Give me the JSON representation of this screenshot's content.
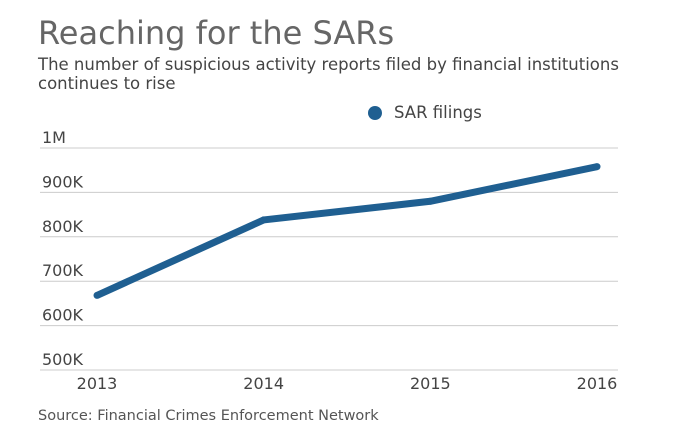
{
  "chart_data": {
    "type": "line",
    "title": "Reaching for the SARs",
    "subtitle": "The number of suspicious activity reports filed by financial institutions continues to rise",
    "x": [
      "2013",
      "2014",
      "2015",
      "2016"
    ],
    "series": [
      {
        "name": "SAR filings",
        "values": [
          668000,
          838000,
          880000,
          958000
        ],
        "color": "#1f5f91"
      }
    ],
    "ylim": [
      500000,
      1000000
    ],
    "yticks": [
      {
        "value": 1000000,
        "label": "1M"
      },
      {
        "value": 900000,
        "label": "900K"
      },
      {
        "value": 800000,
        "label": "800K"
      },
      {
        "value": 700000,
        "label": "700K"
      },
      {
        "value": 600000,
        "label": "600K"
      },
      {
        "value": 500000,
        "label": "500K"
      }
    ],
    "grid": true,
    "legend_position": "top-center",
    "source": "Source: Financial Crimes Enforcement Network"
  }
}
